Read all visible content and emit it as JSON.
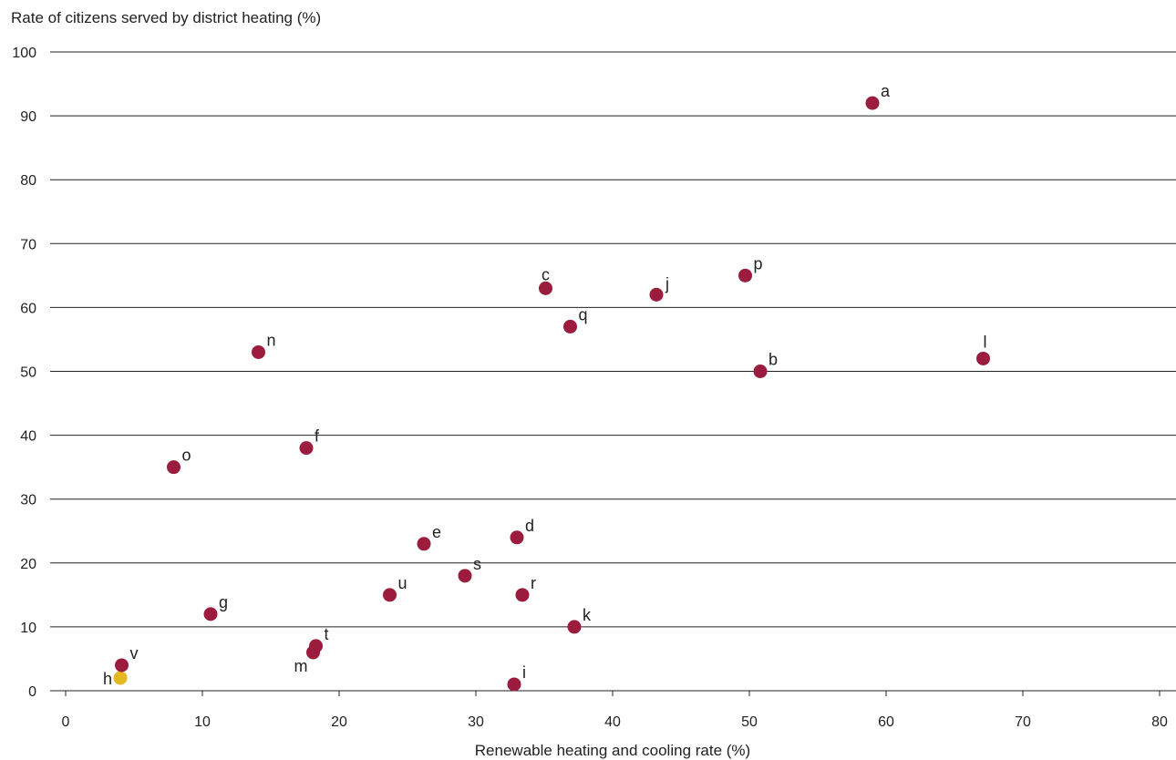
{
  "chart_data": {
    "type": "scatter",
    "ylabel": "Rate of citizens served by district heating (%)",
    "xlabel": "Renewable heating and cooling rate (%)",
    "xlim": [
      0,
      80
    ],
    "ylim": [
      0,
      100
    ],
    "x_ticks": [
      0,
      10,
      20,
      30,
      40,
      50,
      60,
      70,
      80
    ],
    "y_ticks": [
      0,
      10,
      20,
      30,
      40,
      50,
      60,
      70,
      80,
      90,
      100
    ],
    "grid": "horizontal",
    "colors": {
      "default": "#9b1c3d",
      "highlight": "#e4b820",
      "grid": "#222222",
      "text": "#222222"
    },
    "points": [
      {
        "label": "a",
        "x": 59.0,
        "y": 92,
        "highlight": false
      },
      {
        "label": "b",
        "x": 50.8,
        "y": 50,
        "highlight": false
      },
      {
        "label": "c",
        "x": 35.1,
        "y": 63,
        "highlight": false
      },
      {
        "label": "d",
        "x": 33.0,
        "y": 24,
        "highlight": false
      },
      {
        "label": "e",
        "x": 26.2,
        "y": 23,
        "highlight": false
      },
      {
        "label": "f",
        "x": 17.6,
        "y": 38,
        "highlight": false
      },
      {
        "label": "g",
        "x": 10.6,
        "y": 12,
        "highlight": false
      },
      {
        "label": "h",
        "x": 4.0,
        "y": 2,
        "highlight": true
      },
      {
        "label": "i",
        "x": 32.8,
        "y": 1,
        "highlight": false
      },
      {
        "label": "j",
        "x": 43.2,
        "y": 62,
        "highlight": false
      },
      {
        "label": "k",
        "x": 37.2,
        "y": 10,
        "highlight": false
      },
      {
        "label": "l",
        "x": 67.1,
        "y": 52,
        "highlight": false
      },
      {
        "label": "m",
        "x": 18.1,
        "y": 6,
        "highlight": false
      },
      {
        "label": "n",
        "x": 14.1,
        "y": 53,
        "highlight": false
      },
      {
        "label": "o",
        "x": 7.9,
        "y": 35,
        "highlight": false
      },
      {
        "label": "p",
        "x": 49.7,
        "y": 65,
        "highlight": false
      },
      {
        "label": "q",
        "x": 36.9,
        "y": 57,
        "highlight": false
      },
      {
        "label": "r",
        "x": 33.4,
        "y": 15,
        "highlight": false
      },
      {
        "label": "s",
        "x": 29.2,
        "y": 18,
        "highlight": false
      },
      {
        "label": "t",
        "x": 18.3,
        "y": 7,
        "highlight": false
      },
      {
        "label": "u",
        "x": 23.7,
        "y": 15,
        "highlight": false
      },
      {
        "label": "v",
        "x": 4.1,
        "y": 4,
        "highlight": false
      }
    ]
  }
}
